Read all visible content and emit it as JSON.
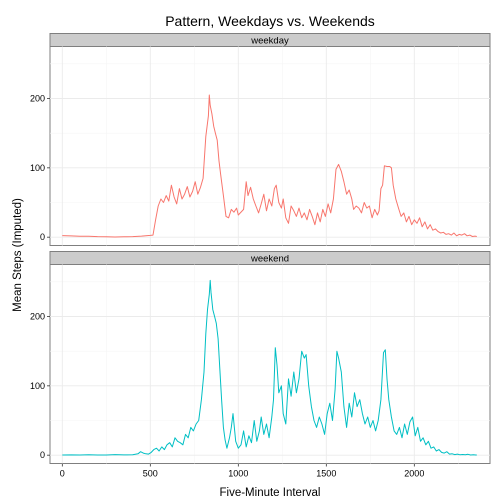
{
  "chart_data": {
    "type": "line",
    "title": "Pattern, Weekdays vs. Weekends",
    "xlabel": "Five-Minute Interval",
    "ylabel": "Mean Steps (Imputed)",
    "xlim": [
      -70,
      2430
    ],
    "ylim": [
      -12,
      275
    ],
    "x_ticks": [
      0,
      500,
      1000,
      1500,
      2000
    ],
    "y_ticks": [
      0,
      100,
      200
    ],
    "grid": true,
    "legend": "none",
    "panels": [
      {
        "label": "weekday",
        "color": "#F8766D",
        "points": [
          [
            0,
            2.3
          ],
          [
            50,
            1.8
          ],
          [
            100,
            1.2
          ],
          [
            150,
            1.4
          ],
          [
            200,
            0.9
          ],
          [
            250,
            0.6
          ],
          [
            300,
            0.3
          ],
          [
            350,
            0.5
          ],
          [
            400,
            0.8
          ],
          [
            450,
            1.5
          ],
          [
            500,
            2.5
          ],
          [
            515,
            3
          ],
          [
            530,
            25
          ],
          [
            545,
            45
          ],
          [
            560,
            55
          ],
          [
            575,
            50
          ],
          [
            590,
            60
          ],
          [
            605,
            52
          ],
          [
            620,
            75
          ],
          [
            635,
            58
          ],
          [
            650,
            48
          ],
          [
            665,
            70
          ],
          [
            680,
            55
          ],
          [
            695,
            62
          ],
          [
            710,
            73
          ],
          [
            725,
            58
          ],
          [
            740,
            66
          ],
          [
            755,
            80
          ],
          [
            770,
            62
          ],
          [
            785,
            72
          ],
          [
            800,
            85
          ],
          [
            815,
            145
          ],
          [
            830,
            175
          ],
          [
            835,
            205
          ],
          [
            840,
            190
          ],
          [
            850,
            178
          ],
          [
            860,
            160
          ],
          [
            870,
            150
          ],
          [
            880,
            140
          ],
          [
            890,
            110
          ],
          [
            900,
            90
          ],
          [
            915,
            60
          ],
          [
            930,
            30
          ],
          [
            945,
            28
          ],
          [
            960,
            40
          ],
          [
            975,
            36
          ],
          [
            990,
            42
          ],
          [
            1000,
            32
          ],
          [
            1030,
            40
          ],
          [
            1045,
            80
          ],
          [
            1055,
            60
          ],
          [
            1070,
            72
          ],
          [
            1085,
            55
          ],
          [
            1100,
            45
          ],
          [
            1115,
            35
          ],
          [
            1130,
            48
          ],
          [
            1145,
            62
          ],
          [
            1160,
            38
          ],
          [
            1175,
            55
          ],
          [
            1190,
            45
          ],
          [
            1205,
            70
          ],
          [
            1215,
            75
          ],
          [
            1230,
            50
          ],
          [
            1245,
            42
          ],
          [
            1255,
            55
          ],
          [
            1270,
            28
          ],
          [
            1285,
            20
          ],
          [
            1300,
            45
          ],
          [
            1315,
            38
          ],
          [
            1330,
            30
          ],
          [
            1345,
            42
          ],
          [
            1360,
            28
          ],
          [
            1375,
            35
          ],
          [
            1390,
            25
          ],
          [
            1405,
            40
          ],
          [
            1420,
            30
          ],
          [
            1435,
            18
          ],
          [
            1450,
            35
          ],
          [
            1465,
            22
          ],
          [
            1480,
            40
          ],
          [
            1495,
            30
          ],
          [
            1510,
            48
          ],
          [
            1525,
            35
          ],
          [
            1540,
            55
          ],
          [
            1555,
            98
          ],
          [
            1570,
            105
          ],
          [
            1585,
            95
          ],
          [
            1600,
            80
          ],
          [
            1615,
            62
          ],
          [
            1630,
            68
          ],
          [
            1645,
            55
          ],
          [
            1655,
            40
          ],
          [
            1670,
            45
          ],
          [
            1685,
            42
          ],
          [
            1700,
            35
          ],
          [
            1715,
            50
          ],
          [
            1730,
            42
          ],
          [
            1745,
            45
          ],
          [
            1760,
            28
          ],
          [
            1775,
            40
          ],
          [
            1790,
            32
          ],
          [
            1800,
            38
          ],
          [
            1810,
            70
          ],
          [
            1820,
            75
          ],
          [
            1830,
            103
          ],
          [
            1845,
            102
          ],
          [
            1860,
            102
          ],
          [
            1870,
            100
          ],
          [
            1880,
            75
          ],
          [
            1895,
            55
          ],
          [
            1910,
            42
          ],
          [
            1925,
            30
          ],
          [
            1940,
            35
          ],
          [
            1955,
            22
          ],
          [
            1970,
            30
          ],
          [
            1985,
            18
          ],
          [
            2000,
            25
          ],
          [
            2015,
            20
          ],
          [
            2030,
            28
          ],
          [
            2045,
            15
          ],
          [
            2060,
            22
          ],
          [
            2075,
            12
          ],
          [
            2090,
            18
          ],
          [
            2105,
            10
          ],
          [
            2120,
            12
          ],
          [
            2135,
            8
          ],
          [
            2150,
            6
          ],
          [
            2165,
            7
          ],
          [
            2180,
            4
          ],
          [
            2195,
            5
          ],
          [
            2210,
            3
          ],
          [
            2225,
            6
          ],
          [
            2240,
            2
          ],
          [
            2255,
            4
          ],
          [
            2270,
            3
          ],
          [
            2285,
            5
          ],
          [
            2300,
            2
          ],
          [
            2315,
            3
          ],
          [
            2330,
            1
          ],
          [
            2345,
            1.5
          ],
          [
            2355,
            1
          ]
        ]
      },
      {
        "label": "weekend",
        "color": "#00BFC4",
        "points": [
          [
            0,
            0.2
          ],
          [
            50,
            0.4
          ],
          [
            100,
            0.2
          ],
          [
            150,
            0.6
          ],
          [
            200,
            0.3
          ],
          [
            250,
            0.2
          ],
          [
            300,
            0.8
          ],
          [
            350,
            0.4
          ],
          [
            400,
            0.6
          ],
          [
            430,
            2
          ],
          [
            445,
            5
          ],
          [
            460,
            3
          ],
          [
            475,
            2
          ],
          [
            490,
            1.5
          ],
          [
            505,
            4
          ],
          [
            520,
            8
          ],
          [
            535,
            10
          ],
          [
            550,
            6
          ],
          [
            565,
            12
          ],
          [
            580,
            8
          ],
          [
            595,
            15
          ],
          [
            610,
            18
          ],
          [
            625,
            12
          ],
          [
            640,
            25
          ],
          [
            655,
            20
          ],
          [
            670,
            18
          ],
          [
            685,
            15
          ],
          [
            700,
            30
          ],
          [
            715,
            25
          ],
          [
            730,
            40
          ],
          [
            745,
            35
          ],
          [
            760,
            45
          ],
          [
            775,
            50
          ],
          [
            790,
            80
          ],
          [
            805,
            120
          ],
          [
            815,
            175
          ],
          [
            825,
            210
          ],
          [
            835,
            232
          ],
          [
            840,
            252
          ],
          [
            845,
            235
          ],
          [
            855,
            210
          ],
          [
            865,
            200
          ],
          [
            875,
            190
          ],
          [
            885,
            168
          ],
          [
            895,
            125
          ],
          [
            905,
            80
          ],
          [
            915,
            40
          ],
          [
            925,
            22
          ],
          [
            935,
            10
          ],
          [
            950,
            25
          ],
          [
            960,
            40
          ],
          [
            970,
            60
          ],
          [
            985,
            20
          ],
          [
            1000,
            10
          ],
          [
            1015,
            15
          ],
          [
            1030,
            35
          ],
          [
            1045,
            12
          ],
          [
            1060,
            28
          ],
          [
            1075,
            18
          ],
          [
            1090,
            50
          ],
          [
            1105,
            20
          ],
          [
            1120,
            35
          ],
          [
            1130,
            55
          ],
          [
            1145,
            30
          ],
          [
            1160,
            45
          ],
          [
            1175,
            25
          ],
          [
            1190,
            55
          ],
          [
            1200,
            80
          ],
          [
            1210,
            155
          ],
          [
            1220,
            130
          ],
          [
            1230,
            90
          ],
          [
            1245,
            100
          ],
          [
            1255,
            60
          ],
          [
            1270,
            45
          ],
          [
            1285,
            110
          ],
          [
            1300,
            85
          ],
          [
            1315,
            120
          ],
          [
            1330,
            90
          ],
          [
            1345,
            110
          ],
          [
            1360,
            150
          ],
          [
            1375,
            140
          ],
          [
            1385,
            145
          ],
          [
            1400,
            100
          ],
          [
            1415,
            70
          ],
          [
            1430,
            50
          ],
          [
            1445,
            40
          ],
          [
            1460,
            55
          ],
          [
            1475,
            45
          ],
          [
            1490,
            30
          ],
          [
            1505,
            60
          ],
          [
            1520,
            75
          ],
          [
            1535,
            50
          ],
          [
            1550,
            95
          ],
          [
            1560,
            150
          ],
          [
            1570,
            140
          ],
          [
            1585,
            120
          ],
          [
            1600,
            70
          ],
          [
            1615,
            40
          ],
          [
            1630,
            75
          ],
          [
            1645,
            55
          ],
          [
            1660,
            90
          ],
          [
            1675,
            70
          ],
          [
            1690,
            80
          ],
          [
            1705,
            60
          ],
          [
            1720,
            45
          ],
          [
            1735,
            55
          ],
          [
            1750,
            40
          ],
          [
            1765,
            50
          ],
          [
            1780,
            35
          ],
          [
            1795,
            50
          ],
          [
            1810,
            80
          ],
          [
            1825,
            148
          ],
          [
            1835,
            152
          ],
          [
            1845,
            110
          ],
          [
            1855,
            80
          ],
          [
            1870,
            55
          ],
          [
            1885,
            35
          ],
          [
            1900,
            30
          ],
          [
            1915,
            40
          ],
          [
            1930,
            25
          ],
          [
            1945,
            45
          ],
          [
            1960,
            30
          ],
          [
            1975,
            48
          ],
          [
            1990,
            55
          ],
          [
            2005,
            28
          ],
          [
            2020,
            40
          ],
          [
            2035,
            20
          ],
          [
            2050,
            25
          ],
          [
            2065,
            15
          ],
          [
            2080,
            20
          ],
          [
            2095,
            10
          ],
          [
            2110,
            12
          ],
          [
            2125,
            6
          ],
          [
            2140,
            8
          ],
          [
            2155,
            4
          ],
          [
            2170,
            3
          ],
          [
            2185,
            5
          ],
          [
            2200,
            1.5
          ],
          [
            2215,
            2
          ],
          [
            2230,
            0.8
          ],
          [
            2245,
            1.5
          ],
          [
            2260,
            0.5
          ],
          [
            2275,
            1
          ],
          [
            2290,
            0.6
          ],
          [
            2305,
            1.2
          ],
          [
            2320,
            0.3
          ],
          [
            2335,
            0.5
          ],
          [
            2350,
            0.2
          ],
          [
            2355,
            0.2
          ]
        ]
      }
    ]
  }
}
